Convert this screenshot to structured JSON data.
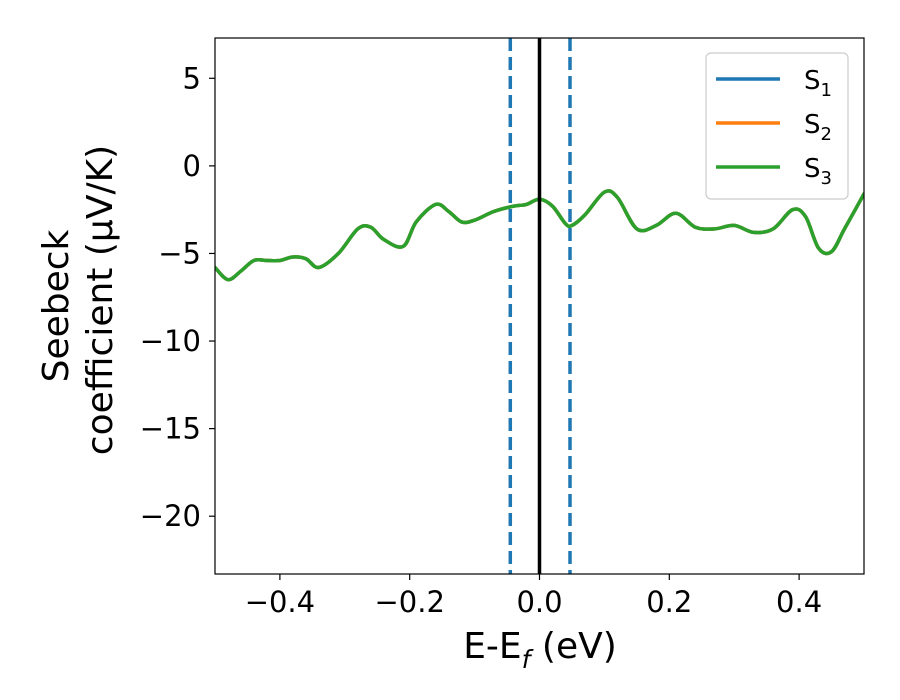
{
  "chart_data": {
    "type": "line",
    "xlabel": "E-E",
    "xlabel_sub": "f",
    "xlabel_unit": " (eV)",
    "ylabel_line1": "Seebeck",
    "ylabel_line2": "coefficient  (μV/K)",
    "xlim": [
      -0.5,
      0.5
    ],
    "ylim": [
      -23.3,
      7.3
    ],
    "xticks": [
      -0.4,
      -0.2,
      0.0,
      0.2,
      0.4
    ],
    "xtick_labels": [
      "−0.4",
      "−0.2",
      "0.0",
      "0.2",
      "0.4"
    ],
    "yticks": [
      5,
      0,
      -5,
      -10,
      -15,
      -20
    ],
    "ytick_labels": [
      "5",
      "0",
      "−5",
      "−10",
      "−15",
      "−20"
    ],
    "grid": false,
    "legend_position": "top-right",
    "vlines": [
      {
        "x": -0.045,
        "style": "dashed",
        "color": "#1f77b4"
      },
      {
        "x": 0.0,
        "style": "solid",
        "color": "#000000"
      },
      {
        "x": 0.047,
        "style": "dashed",
        "color": "#1f77b4"
      }
    ],
    "series": [
      {
        "name": "S",
        "sub": "1",
        "color": "#1f77b4",
        "x": [
          -0.5,
          -0.48,
          -0.46,
          -0.44,
          -0.42,
          -0.4,
          -0.38,
          -0.36,
          -0.34,
          -0.31,
          -0.28,
          -0.26,
          -0.24,
          -0.21,
          -0.19,
          -0.16,
          -0.14,
          -0.12,
          -0.1,
          -0.07,
          -0.04,
          -0.02,
          0.0,
          0.02,
          0.04,
          0.05,
          0.07,
          0.1,
          0.12,
          0.15,
          0.18,
          0.21,
          0.24,
          0.27,
          0.3,
          0.33,
          0.36,
          0.39,
          0.41,
          0.43,
          0.45,
          0.47,
          0.5
        ],
        "y": [
          -5.8,
          -6.5,
          -6.0,
          -5.4,
          -5.4,
          -5.4,
          -5.2,
          -5.3,
          -5.8,
          -5.0,
          -3.6,
          -3.5,
          -4.2,
          -4.6,
          -3.2,
          -2.2,
          -2.6,
          -3.2,
          -3.1,
          -2.6,
          -2.3,
          -2.2,
          -1.9,
          -2.3,
          -3.3,
          -3.4,
          -2.8,
          -1.5,
          -1.8,
          -3.6,
          -3.4,
          -2.7,
          -3.5,
          -3.6,
          -3.4,
          -3.8,
          -3.6,
          -2.5,
          -2.9,
          -4.7,
          -4.9,
          -3.6,
          -1.6
        ]
      },
      {
        "name": "S",
        "sub": "2",
        "color": "#ff7f0e",
        "x": [
          -0.5,
          -0.48,
          -0.46,
          -0.44,
          -0.42,
          -0.4,
          -0.38,
          -0.36,
          -0.34,
          -0.31,
          -0.28,
          -0.26,
          -0.24,
          -0.21,
          -0.19,
          -0.16,
          -0.14,
          -0.12,
          -0.1,
          -0.07,
          -0.04,
          -0.02,
          0.0,
          0.02,
          0.04,
          0.05,
          0.07,
          0.1,
          0.12,
          0.15,
          0.18,
          0.21,
          0.24,
          0.27,
          0.3,
          0.33,
          0.36,
          0.39,
          0.41,
          0.43,
          0.45,
          0.47,
          0.5
        ],
        "y": [
          -5.8,
          -6.5,
          -6.0,
          -5.4,
          -5.4,
          -5.4,
          -5.2,
          -5.3,
          -5.8,
          -5.0,
          -3.6,
          -3.5,
          -4.2,
          -4.6,
          -3.2,
          -2.2,
          -2.6,
          -3.2,
          -3.1,
          -2.6,
          -2.3,
          -2.2,
          -1.9,
          -2.3,
          -3.3,
          -3.4,
          -2.8,
          -1.5,
          -1.8,
          -3.6,
          -3.4,
          -2.7,
          -3.5,
          -3.6,
          -3.4,
          -3.8,
          -3.6,
          -2.5,
          -2.9,
          -4.7,
          -4.9,
          -3.6,
          -1.6
        ]
      },
      {
        "name": "S",
        "sub": "3",
        "color": "#2ca02c",
        "x": [
          -0.5,
          -0.48,
          -0.46,
          -0.44,
          -0.42,
          -0.4,
          -0.38,
          -0.36,
          -0.34,
          -0.31,
          -0.28,
          -0.26,
          -0.24,
          -0.21,
          -0.19,
          -0.16,
          -0.14,
          -0.12,
          -0.1,
          -0.07,
          -0.04,
          -0.02,
          0.0,
          0.02,
          0.04,
          0.05,
          0.07,
          0.1,
          0.12,
          0.15,
          0.18,
          0.21,
          0.24,
          0.27,
          0.3,
          0.33,
          0.36,
          0.39,
          0.41,
          0.43,
          0.45,
          0.47,
          0.5
        ],
        "y": [
          -5.8,
          -6.5,
          -6.0,
          -5.4,
          -5.4,
          -5.4,
          -5.2,
          -5.3,
          -5.8,
          -5.0,
          -3.6,
          -3.5,
          -4.2,
          -4.6,
          -3.2,
          -2.2,
          -2.6,
          -3.2,
          -3.1,
          -2.6,
          -2.3,
          -2.2,
          -1.9,
          -2.3,
          -3.3,
          -3.4,
          -2.8,
          -1.5,
          -1.8,
          -3.6,
          -3.4,
          -2.7,
          -3.5,
          -3.6,
          -3.4,
          -3.8,
          -3.6,
          -2.5,
          -2.9,
          -4.7,
          -4.9,
          -3.6,
          -1.6
        ]
      }
    ]
  }
}
